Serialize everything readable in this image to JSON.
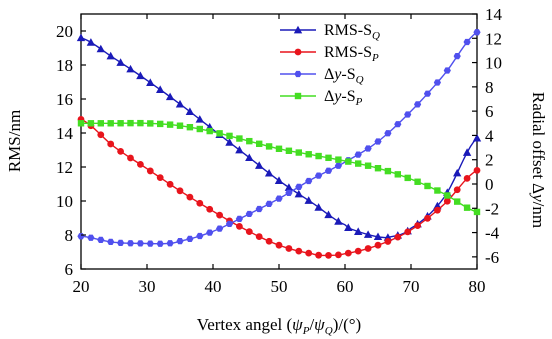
{
  "chart_data": {
    "type": "line",
    "xlabel": {
      "pre": "Vertex angel (",
      "psi": "ψ",
      "sub1": "P",
      "slash": "/",
      "sub2": "Q",
      "post": ")/(°)"
    },
    "ylabel_left": "RMS/nm",
    "ylabel_right": {
      "pre": "Radial offset ",
      "delta": "Δ",
      "y": "y",
      "post": "/nm"
    },
    "xlim": [
      20,
      80
    ],
    "ylim_left": [
      6,
      21
    ],
    "ylim_right": [
      -7,
      14
    ],
    "xticks": [
      20,
      30,
      40,
      50,
      60,
      70,
      80
    ],
    "yticks_left": [
      6,
      8,
      10,
      12,
      14,
      16,
      18,
      20
    ],
    "yticks_right": [
      -6,
      -4,
      -2,
      0,
      2,
      4,
      6,
      8,
      10,
      12,
      14
    ],
    "grid": false,
    "legend_position": "top-right",
    "x": [
      20,
      30,
      40,
      50,
      60,
      65,
      70,
      75,
      80
    ],
    "series": [
      {
        "name": "RMS-S",
        "sub": "Q",
        "axis": "left",
        "color": "#1a1ab8",
        "marker": "triangle",
        "x": [
          20,
          25,
          30,
          35,
          40,
          45,
          50,
          55,
          60,
          62,
          65,
          67,
          70,
          75,
          80
        ],
        "y": [
          19.6,
          18.4,
          17.1,
          15.7,
          14.2,
          12.7,
          11.2,
          9.9,
          8.6,
          8.2,
          7.9,
          7.9,
          8.4,
          10.2,
          13.7
        ]
      },
      {
        "name": "RMS-S",
        "sub": "P",
        "axis": "left",
        "color": "#e8141c",
        "marker": "circle",
        "x": [
          20,
          25,
          30,
          35,
          40,
          45,
          50,
          55,
          57,
          60,
          65,
          70,
          75,
          80
        ],
        "y": [
          14.8,
          13.2,
          11.9,
          10.6,
          9.4,
          8.3,
          7.4,
          6.9,
          6.8,
          6.9,
          7.4,
          8.3,
          9.8,
          11.8
        ]
      },
      {
        "name": "Δy-S",
        "sub": "Q",
        "axis": "right",
        "color": "#5050ee",
        "marker": "hexagon",
        "x": [
          20,
          25,
          30,
          33,
          35,
          40,
          45,
          50,
          55,
          60,
          65,
          70,
          75,
          80
        ],
        "y": [
          -4.3,
          -4.8,
          -4.9,
          -4.9,
          -4.7,
          -3.9,
          -2.6,
          -1.2,
          0.4,
          1.8,
          3.5,
          6.0,
          9.0,
          12.5
        ]
      },
      {
        "name": "Δy-S",
        "sub": "P",
        "axis": "right",
        "color": "#44dd22",
        "marker": "square",
        "x": [
          20,
          25,
          30,
          35,
          40,
          45,
          50,
          55,
          60,
          65,
          70,
          75,
          80
        ],
        "y": [
          5.0,
          5.0,
          5.0,
          4.8,
          4.3,
          3.6,
          2.9,
          2.4,
          1.9,
          1.3,
          0.4,
          -0.8,
          -2.3
        ]
      }
    ]
  }
}
